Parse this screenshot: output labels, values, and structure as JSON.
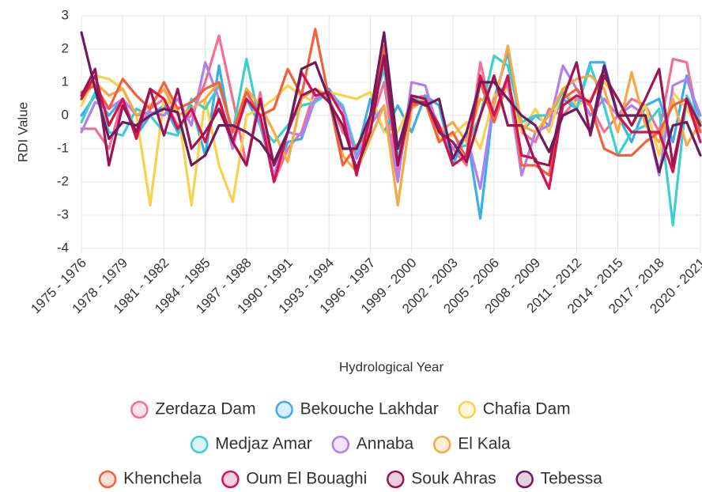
{
  "chart_data": {
    "type": "line",
    "x_label": "Hydrological Year",
    "y_label": "RDI Value",
    "categories": [
      "1975 - 1976",
      null,
      null,
      "1978 - 1979",
      null,
      null,
      "1981 - 1982",
      null,
      null,
      "1984 - 1985",
      null,
      null,
      "1987 - 1988",
      null,
      null,
      "1990 - 1991",
      null,
      null,
      "1993 - 1994",
      null,
      null,
      "1996 - 1997",
      null,
      null,
      "1999 - 2000",
      null,
      null,
      "2002 - 2003",
      null,
      null,
      "2005 - 2006",
      null,
      null,
      "2008 - 2009",
      null,
      null,
      "2011 - 2012",
      null,
      null,
      "2014 - 2015",
      null,
      null,
      "2017 - 2018",
      null,
      null,
      "2020 - 2021"
    ],
    "ylim": [
      -4,
      3
    ],
    "yticks": [
      -4,
      -3,
      -2,
      -1,
      0,
      1,
      2,
      3
    ],
    "grid": true,
    "series": [
      {
        "name": "Zerdaza Dam",
        "color": "#f56d92",
        "values": [
          -0.4,
          -0.4,
          -1.0,
          0.5,
          -0.5,
          0.2,
          0.5,
          -0.3,
          0.0,
          1.0,
          2.4,
          0.5,
          -1.5,
          0.7,
          -2.0,
          -1.0,
          -0.5,
          0.8,
          0.5,
          -0.5,
          -1.0,
          -0.3,
          1.0,
          -1.8,
          0.5,
          0.6,
          -0.3,
          -1.0,
          -1.5,
          1.6,
          -0.2,
          1.0,
          -0.5,
          -0.8,
          0.2,
          0.0,
          0.5,
          0.3,
          -0.5,
          0.0,
          0.5,
          0.3,
          -0.5,
          1.7,
          1.6,
          -0.5
        ]
      },
      {
        "name": "Bekouche Lakhdar",
        "color": "#3aaee8",
        "values": [
          0.0,
          0.6,
          0.0,
          0.5,
          -0.6,
          0.0,
          0.3,
          -0.5,
          0.3,
          -1.2,
          1.5,
          -0.8,
          0.5,
          -0.3,
          -1.8,
          -0.8,
          -0.7,
          0.5,
          0.8,
          0.2,
          -1.2,
          0.5,
          -0.5,
          0.3,
          -0.5,
          0.6,
          0.3,
          -1.5,
          -0.5,
          -3.1,
          0.5,
          1.9,
          -0.5,
          0.0,
          -0.3,
          0.5,
          0.2,
          1.6,
          1.6,
          0.0,
          -0.8,
          0.3,
          0.5,
          -0.8,
          1.2,
          -0.3
        ]
      },
      {
        "name": "Chafia Dam",
        "color": "#f9d24c",
        "values": [
          0.3,
          1.2,
          1.1,
          0.8,
          0.0,
          -2.7,
          0.5,
          0.2,
          -2.7,
          0.5,
          -1.5,
          -2.6,
          0.0,
          0.2,
          0.5,
          0.9,
          0.6,
          0.4,
          0.7,
          0.6,
          0.5,
          0.7,
          -0.5,
          -0.5,
          0.4,
          0.5,
          -0.7,
          -0.6,
          -0.2,
          -1.0,
          0.6,
          0.8,
          -0.5,
          0.2,
          -0.5,
          0.8,
          0.3,
          0.5,
          1.0,
          0.5,
          -0.3,
          0.3,
          -1.2,
          0.7,
          0.2,
          -0.5
        ]
      },
      {
        "name": "Medjaz Amar",
        "color": "#3dcfcf",
        "values": [
          -0.2,
          0.7,
          -0.5,
          -0.6,
          0.2,
          0.0,
          -0.5,
          -0.6,
          0.5,
          0.2,
          0.9,
          -0.5,
          1.7,
          -0.3,
          -0.8,
          -0.3,
          0.3,
          0.4,
          0.7,
          0.3,
          -1.1,
          0.0,
          1.4,
          -1.3,
          0.5,
          0.4,
          -0.5,
          -1.0,
          -0.9,
          0.0,
          1.8,
          1.5,
          -0.2,
          0.0,
          0.0,
          0.7,
          0.2,
          1.5,
          0.3,
          -1.2,
          -0.5,
          -0.3,
          0.2,
          -3.3,
          0.6,
          -0.2
        ]
      },
      {
        "name": "Annaba",
        "color": "#b27ef2",
        "values": [
          -0.5,
          0.4,
          0.2,
          0.5,
          0.0,
          0.1,
          0.0,
          0.5,
          -0.3,
          1.6,
          0.5,
          -1.0,
          0.8,
          -0.2,
          -1.8,
          -0.5,
          -0.6,
          0.5,
          0.7,
          0.2,
          -1.3,
          -0.3,
          0.3,
          -2.0,
          1.0,
          0.9,
          -0.5,
          -1.0,
          -0.6,
          -2.2,
          0.5,
          1.0,
          -1.8,
          -0.5,
          -0.3,
          1.5,
          0.8,
          0.0,
          0.5,
          0.0,
          0.3,
          0.0,
          -1.8,
          0.9,
          1.1,
          0.0
        ]
      },
      {
        "name": "El Kala",
        "color": "#f6a843",
        "values": [
          0.5,
          1.0,
          0.6,
          0.8,
          0.0,
          0.3,
          0.8,
          0.0,
          0.2,
          0.5,
          1.0,
          -0.5,
          0.8,
          0.3,
          -0.5,
          -1.4,
          0.5,
          0.8,
          0.6,
          -1.2,
          -1.7,
          -0.7,
          0.3,
          -2.7,
          0.2,
          0.5,
          -0.5,
          -0.2,
          -0.8,
          0.5,
          0.3,
          2.1,
          -0.3,
          -0.5,
          0.0,
          0.8,
          1.1,
          1.2,
          0.8,
          -0.5,
          1.3,
          -0.3,
          -0.8,
          0.5,
          -0.9,
          -0.2
        ]
      },
      {
        "name": "Khenchela",
        "color": "#f2603c",
        "values": [
          0.7,
          0.9,
          0.2,
          1.1,
          0.6,
          0.2,
          1.0,
          0.2,
          0.4,
          0.8,
          1.0,
          -0.5,
          0.7,
          0.0,
          0.2,
          1.4,
          0.6,
          2.6,
          0.5,
          -1.5,
          -0.9,
          -0.5,
          2.1,
          -1.5,
          0.3,
          0.4,
          -0.8,
          -0.5,
          -1.3,
          1.0,
          -0.2,
          1.2,
          -1.5,
          -1.5,
          -1.8,
          0.5,
          0.8,
          0.3,
          -1.0,
          -1.2,
          -1.2,
          -0.8,
          -0.5,
          0.3,
          0.5,
          -0.5
        ]
      },
      {
        "name": "Oum El Bouaghi",
        "color": "#d3124e",
        "values": [
          0.5,
          1.2,
          -0.3,
          0.5,
          -0.7,
          0.8,
          0.5,
          -0.4,
          0.2,
          -0.8,
          0.5,
          -0.8,
          0.5,
          0.0,
          -2.0,
          -0.5,
          1.3,
          0.6,
          0.7,
          0.0,
          -1.8,
          0.0,
          1.7,
          -1.5,
          0.4,
          0.4,
          -0.3,
          -1.5,
          -1.2,
          1.2,
          0.0,
          1.2,
          -1.2,
          -1.3,
          -2.2,
          0.3,
          0.6,
          0.4,
          1.4,
          0.0,
          -0.5,
          -0.5,
          -0.5,
          -1.7,
          0.5,
          -0.8
        ]
      },
      {
        "name": "Souk Ahras",
        "color": "#9c1552",
        "values": [
          0.6,
          1.4,
          -1.5,
          0.3,
          -0.5,
          0.8,
          -0.6,
          0.8,
          -1.0,
          -0.5,
          0.2,
          -0.8,
          -1.5,
          0.5,
          -1.5,
          -0.5,
          0.6,
          0.8,
          0.4,
          -0.3,
          -1.6,
          -0.5,
          1.8,
          -1.5,
          0.6,
          0.5,
          -0.5,
          -0.8,
          -1.4,
          0.0,
          1.2,
          -0.3,
          -0.3,
          -1.4,
          -1.5,
          0.5,
          1.6,
          -0.6,
          1.2,
          0.5,
          -0.3,
          0.5,
          1.4,
          -1.5,
          0.5,
          -0.3
        ]
      },
      {
        "name": "Tebessa",
        "color": "#6b1c5c",
        "values": [
          2.5,
          0.8,
          -0.7,
          -0.2,
          -0.3,
          0.0,
          0.2,
          0.1,
          -1.5,
          -1.2,
          -0.3,
          -0.3,
          -0.5,
          -0.8,
          -1.4,
          -0.5,
          1.4,
          1.6,
          0.5,
          -1.0,
          -1.0,
          0.0,
          2.5,
          -1.0,
          0.5,
          0.3,
          0.5,
          -1.3,
          -0.5,
          1.0,
          1.0,
          0.5,
          0.0,
          -0.3,
          -1.1,
          0.0,
          0.2,
          -0.5,
          1.5,
          0.0,
          0.0,
          0.0,
          -1.7,
          -0.3,
          -0.2,
          -1.2
        ]
      }
    ]
  }
}
